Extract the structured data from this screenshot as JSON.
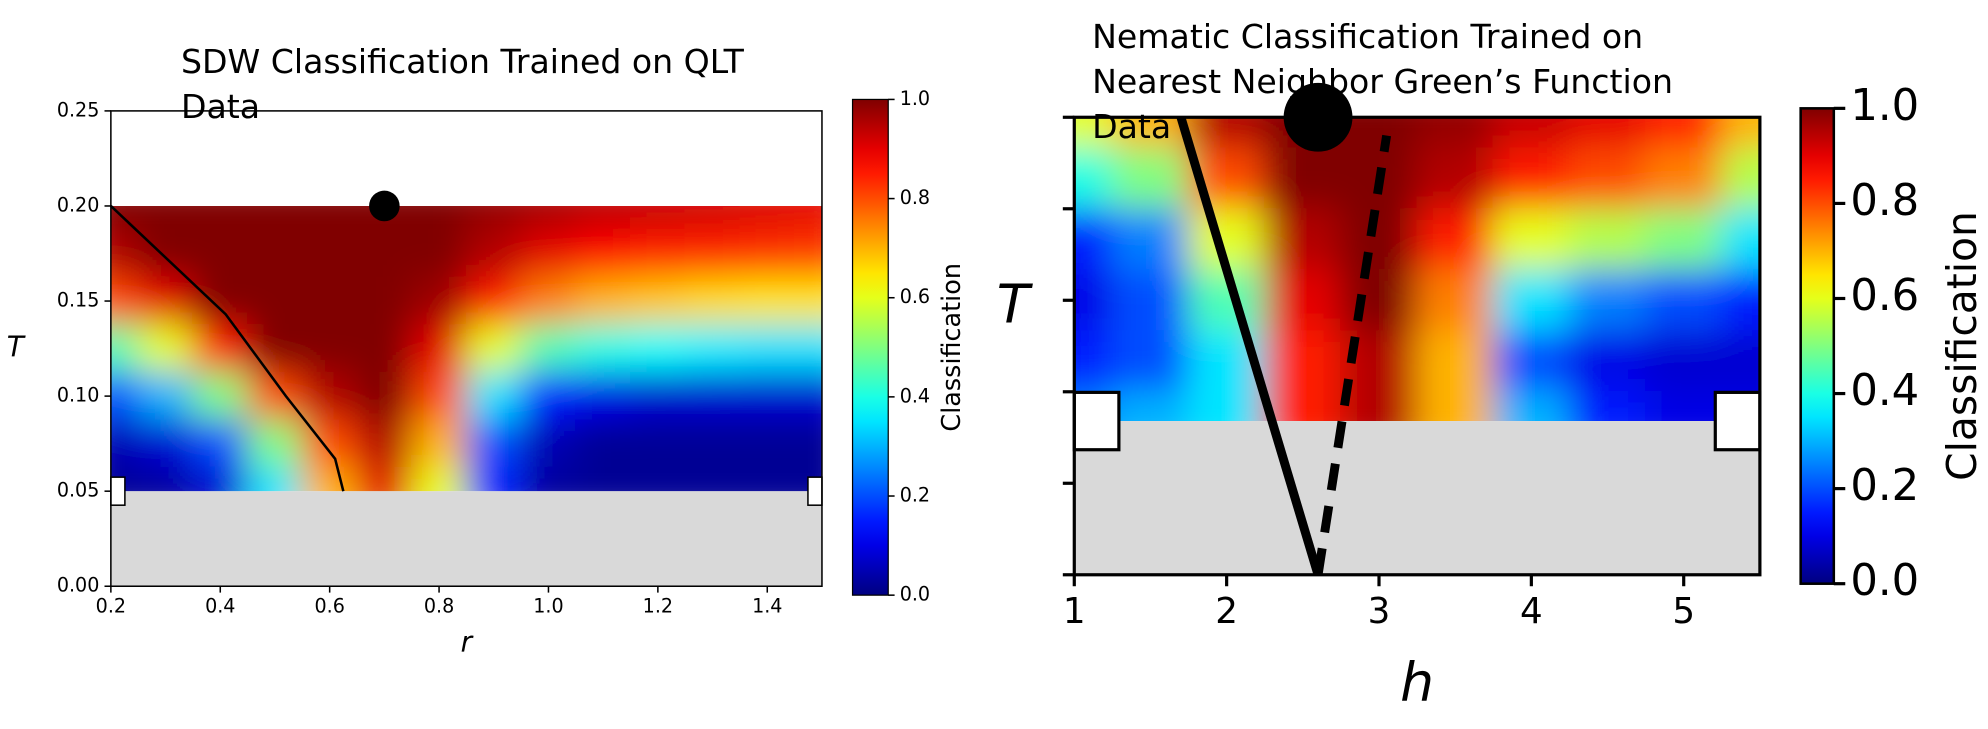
{
  "chart_data": [
    {
      "type": "heatmap",
      "title": [
        "SDW Classification Trained on QLT",
        "Data"
      ],
      "x_label": "r",
      "y_label": "T",
      "xlim": [
        0.2,
        1.5
      ],
      "ylim": [
        0,
        0.25
      ],
      "xticks": [
        0.2,
        0.4,
        0.6,
        0.8,
        {
          "value": 1,
          "label": "1.0"
        },
        1.2,
        1.4
      ],
      "yticks": [
        {
          "value": 0,
          "label": "0.00"
        },
        {
          "value": 0.05,
          "label": "0.05"
        },
        {
          "value": 0.1,
          "label": "0.10"
        },
        {
          "value": 0.15,
          "label": "0.15"
        },
        {
          "value": 0.2,
          "label": "0.20"
        },
        {
          "value": 0.25,
          "label": "0.25"
        }
      ],
      "ytick_labels": true,
      "colormap": "jet",
      "x": [
        0.2,
        0.3,
        0.4,
        0.5,
        0.6,
        0.7,
        0.8,
        0.9,
        1.0,
        1.1,
        1.2,
        1.3,
        1.4,
        1.5
      ],
      "y": [
        0.2,
        0.175,
        0.15,
        0.125,
        0.1,
        0.075,
        0.05
      ],
      "z": [
        [
          1,
          1,
          1,
          1,
          1,
          1,
          1,
          0.98,
          0.96,
          0.94,
          0.93,
          0.92,
          0.91,
          0.9
        ],
        [
          0.95,
          1,
          1,
          1,
          1,
          1,
          1,
          0.95,
          0.9,
          0.87,
          0.85,
          0.84,
          0.83,
          0.82
        ],
        [
          0.8,
          0.9,
          1,
          1,
          1,
          1,
          0.97,
          0.85,
          0.75,
          0.7,
          0.68,
          0.66,
          0.65,
          0.65
        ],
        [
          0.45,
          0.6,
          0.85,
          1,
          1,
          1,
          0.9,
          0.6,
          0.45,
          0.4,
          0.38,
          0.36,
          0.35,
          0.35
        ],
        [
          0.2,
          0.3,
          0.5,
          0.8,
          0.95,
          1,
          0.8,
          0.35,
          0.15,
          0.1,
          0.08,
          0.08,
          0.08,
          0.08
        ],
        [
          0.05,
          0.08,
          0.2,
          0.5,
          0.8,
          0.95,
          0.7,
          0.2,
          0.05,
          0.02,
          0.02,
          0.02,
          0.02,
          0.02
        ],
        [
          0.02,
          0.03,
          0.08,
          0.35,
          0.7,
          0.9,
          0.6,
          0.15,
          0.03,
          0.02,
          0.02,
          0.02,
          0.02,
          0.02
        ]
      ],
      "colorbar_label": "Classification",
      "zlim": [
        0,
        1
      ],
      "colorbar_ticks": [
        {
          "value": 0,
          "label": "0.0"
        },
        {
          "value": 0.2,
          "label": "0.2"
        },
        {
          "value": 0.4,
          "label": "0.4"
        },
        {
          "value": 0.6,
          "label": "0.6"
        },
        {
          "value": 0.8,
          "label": "0.8"
        },
        {
          "value": 1,
          "label": "1.0"
        }
      ],
      "lines": [
        {
          "x": [
            0.2,
            0.41,
            0.52,
            0.61,
            0.625
          ],
          "y": [
            0.2,
            0.143,
            0.1,
            0.067,
            0.05
          ],
          "style": "solid"
        }
      ],
      "points": [
        {
          "x": 0.7,
          "y": 0.2
        }
      ]
    },
    {
      "type": "heatmap",
      "title": [
        "Nematic Classification Trained on",
        "Nearest Neighbor Green’s Function",
        "Data"
      ],
      "x_label": "h",
      "y_label": "T",
      "xlim": [
        1,
        5.5
      ],
      "ylim": [
        0,
        5
      ],
      "xticks": [
        1,
        2,
        3,
        4,
        5
      ],
      "yticks": [
        0,
        1,
        2,
        3,
        4,
        5
      ],
      "ytick_labels": false,
      "colormap": "jet",
      "x": [
        1,
        1.5,
        2,
        2.5,
        3,
        3.5,
        4,
        4.5,
        5,
        5.5
      ],
      "y": [
        5,
        4.33,
        3.67,
        3,
        2.33,
        1.68
      ],
      "z": [
        [
          0.6,
          0.7,
          0.95,
          1,
          1,
          0.98,
          0.93,
          0.9,
          0.85,
          0.7
        ],
        [
          0.4,
          0.5,
          0.8,
          1,
          1,
          0.95,
          0.85,
          0.8,
          0.75,
          0.55
        ],
        [
          0.15,
          0.25,
          0.6,
          0.95,
          1,
          0.85,
          0.6,
          0.55,
          0.5,
          0.35
        ],
        [
          0.1,
          0.2,
          0.45,
          0.9,
          1,
          0.75,
          0.35,
          0.25,
          0.2,
          0.15
        ],
        [
          0.15,
          0.2,
          0.35,
          0.85,
          0.95,
          0.7,
          0.2,
          0.1,
          0.08,
          0.08
        ],
        [
          0.25,
          0.3,
          0.35,
          0.85,
          0.95,
          0.7,
          0.3,
          0.15,
          0.1,
          0.1
        ]
      ],
      "colorbar_label": "Classification",
      "zlim": [
        0,
        1
      ],
      "colorbar_ticks": [
        {
          "value": 0,
          "label": "0.0"
        },
        {
          "value": 0.2,
          "label": "0.2"
        },
        {
          "value": 0.4,
          "label": "0.4"
        },
        {
          "value": 0.6,
          "label": "0.6"
        },
        {
          "value": 0.8,
          "label": "0.8"
        },
        {
          "value": 1,
          "label": "1.0"
        }
      ],
      "lines": [
        {
          "x": [
            1.7,
            2.6
          ],
          "y": [
            5,
            0
          ],
          "style": "solid"
        },
        {
          "x": [
            2.6,
            3.05
          ],
          "y": [
            0,
            4.8
          ],
          "style": "dashed"
        }
      ],
      "points": [
        {
          "x": 2.6,
          "y": 5
        }
      ]
    }
  ]
}
